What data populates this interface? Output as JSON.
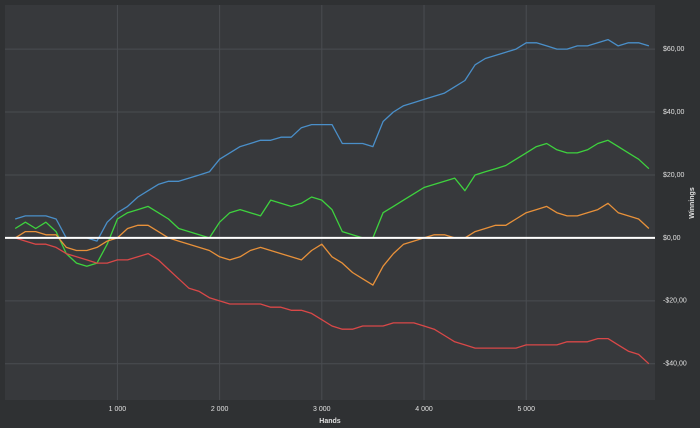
{
  "chart_data": {
    "type": "line",
    "x_label": "Hands",
    "y_label": "Winnings",
    "x": [
      0,
      100,
      200,
      300,
      400,
      500,
      600,
      700,
      800,
      900,
      1000,
      1100,
      1200,
      1300,
      1400,
      1500,
      1600,
      1700,
      1800,
      1900,
      2000,
      2100,
      2200,
      2300,
      2400,
      2500,
      2600,
      2700,
      2800,
      2900,
      3000,
      3100,
      3200,
      3300,
      3400,
      3500,
      3600,
      3700,
      3800,
      3900,
      4000,
      4100,
      4200,
      4300,
      4400,
      4500,
      4600,
      4700,
      4800,
      4900,
      5000,
      5100,
      5200,
      5300,
      5400,
      5500,
      5600,
      5700,
      5800,
      5900,
      6000,
      6100,
      6200
    ],
    "series": [
      {
        "color": "#4a8fc9",
        "values": [
          6,
          7,
          7,
          7,
          6,
          0,
          0,
          0,
          -1,
          5,
          8,
          10,
          13,
          15,
          17,
          18,
          18,
          19,
          20,
          21,
          25,
          27,
          29,
          30,
          31,
          31,
          32,
          32,
          35,
          36,
          36,
          36,
          30,
          30,
          30,
          29,
          37,
          40,
          42,
          43,
          44,
          45,
          46,
          48,
          50,
          55,
          57,
          58,
          59,
          60,
          62,
          62,
          61,
          60,
          60,
          61,
          61,
          62,
          63,
          61,
          62,
          62,
          61
        ]
      },
      {
        "color": "#3ed23e",
        "values": [
          3,
          5,
          3,
          5,
          2,
          -5,
          -8,
          -9,
          -8,
          -2,
          6,
          8,
          9,
          10,
          8,
          6,
          3,
          2,
          1,
          0,
          5,
          8,
          9,
          8,
          7,
          12,
          11,
          10,
          11,
          13,
          12,
          9,
          2,
          1,
          0,
          0,
          8,
          10,
          12,
          14,
          16,
          17,
          18,
          19,
          15,
          20,
          21,
          22,
          23,
          25,
          27,
          29,
          30,
          28,
          27,
          27,
          28,
          30,
          31,
          29,
          27,
          25,
          22
        ]
      },
      {
        "color": "#e8913a",
        "values": [
          0,
          2,
          2,
          1,
          1,
          -3,
          -4,
          -4,
          -3,
          -1,
          0,
          3,
          4,
          4,
          2,
          0,
          -1,
          -2,
          -3,
          -4,
          -6,
          -7,
          -6,
          -4,
          -3,
          -4,
          -5,
          -6,
          -7,
          -4,
          -2,
          -6,
          -8,
          -11,
          -13,
          -15,
          -9,
          -5,
          -2,
          -1,
          0,
          1,
          1,
          0,
          0,
          2,
          3,
          4,
          4,
          6,
          8,
          9,
          10,
          8,
          7,
          7,
          8,
          9,
          11,
          8,
          7,
          6,
          3
        ]
      },
      {
        "color": "#d94848",
        "values": [
          0,
          -1,
          -2,
          -2,
          -3,
          -5,
          -6,
          -7,
          -8,
          -8,
          -7,
          -7,
          -6,
          -5,
          -7,
          -10,
          -13,
          -16,
          -17,
          -19,
          -20,
          -21,
          -21,
          -21,
          -21,
          -22,
          -22,
          -23,
          -23,
          -24,
          -26,
          -28,
          -29,
          -29,
          -28,
          -28,
          -28,
          -27,
          -27,
          -27,
          -28,
          -29,
          -31,
          -33,
          -34,
          -35,
          -35,
          -35,
          -35,
          -35,
          -34,
          -34,
          -34,
          -34,
          -33,
          -33,
          -33,
          -32,
          -32,
          -34,
          -36,
          -37,
          -40
        ]
      }
    ],
    "xlim": [
      -100,
      6260
    ],
    "ylim": [
      -51.5,
      74
    ],
    "xticks": [
      {
        "value": 1000,
        "label": "1 000"
      },
      {
        "value": 2000,
        "label": "2 000"
      },
      {
        "value": 3000,
        "label": "3 000"
      },
      {
        "value": 4000,
        "label": "4 000"
      },
      {
        "value": 5000,
        "label": "5 000"
      }
    ],
    "yticks": [
      {
        "value": -40,
        "label": "-$40,00"
      },
      {
        "value": -20,
        "label": "-$20,00"
      },
      {
        "value": 0,
        "label": "$0,00"
      },
      {
        "value": 20,
        "label": "$20,00"
      },
      {
        "value": 40,
        "label": "$40,00"
      },
      {
        "value": 60,
        "label": "$60,00"
      }
    ],
    "grid": true
  }
}
